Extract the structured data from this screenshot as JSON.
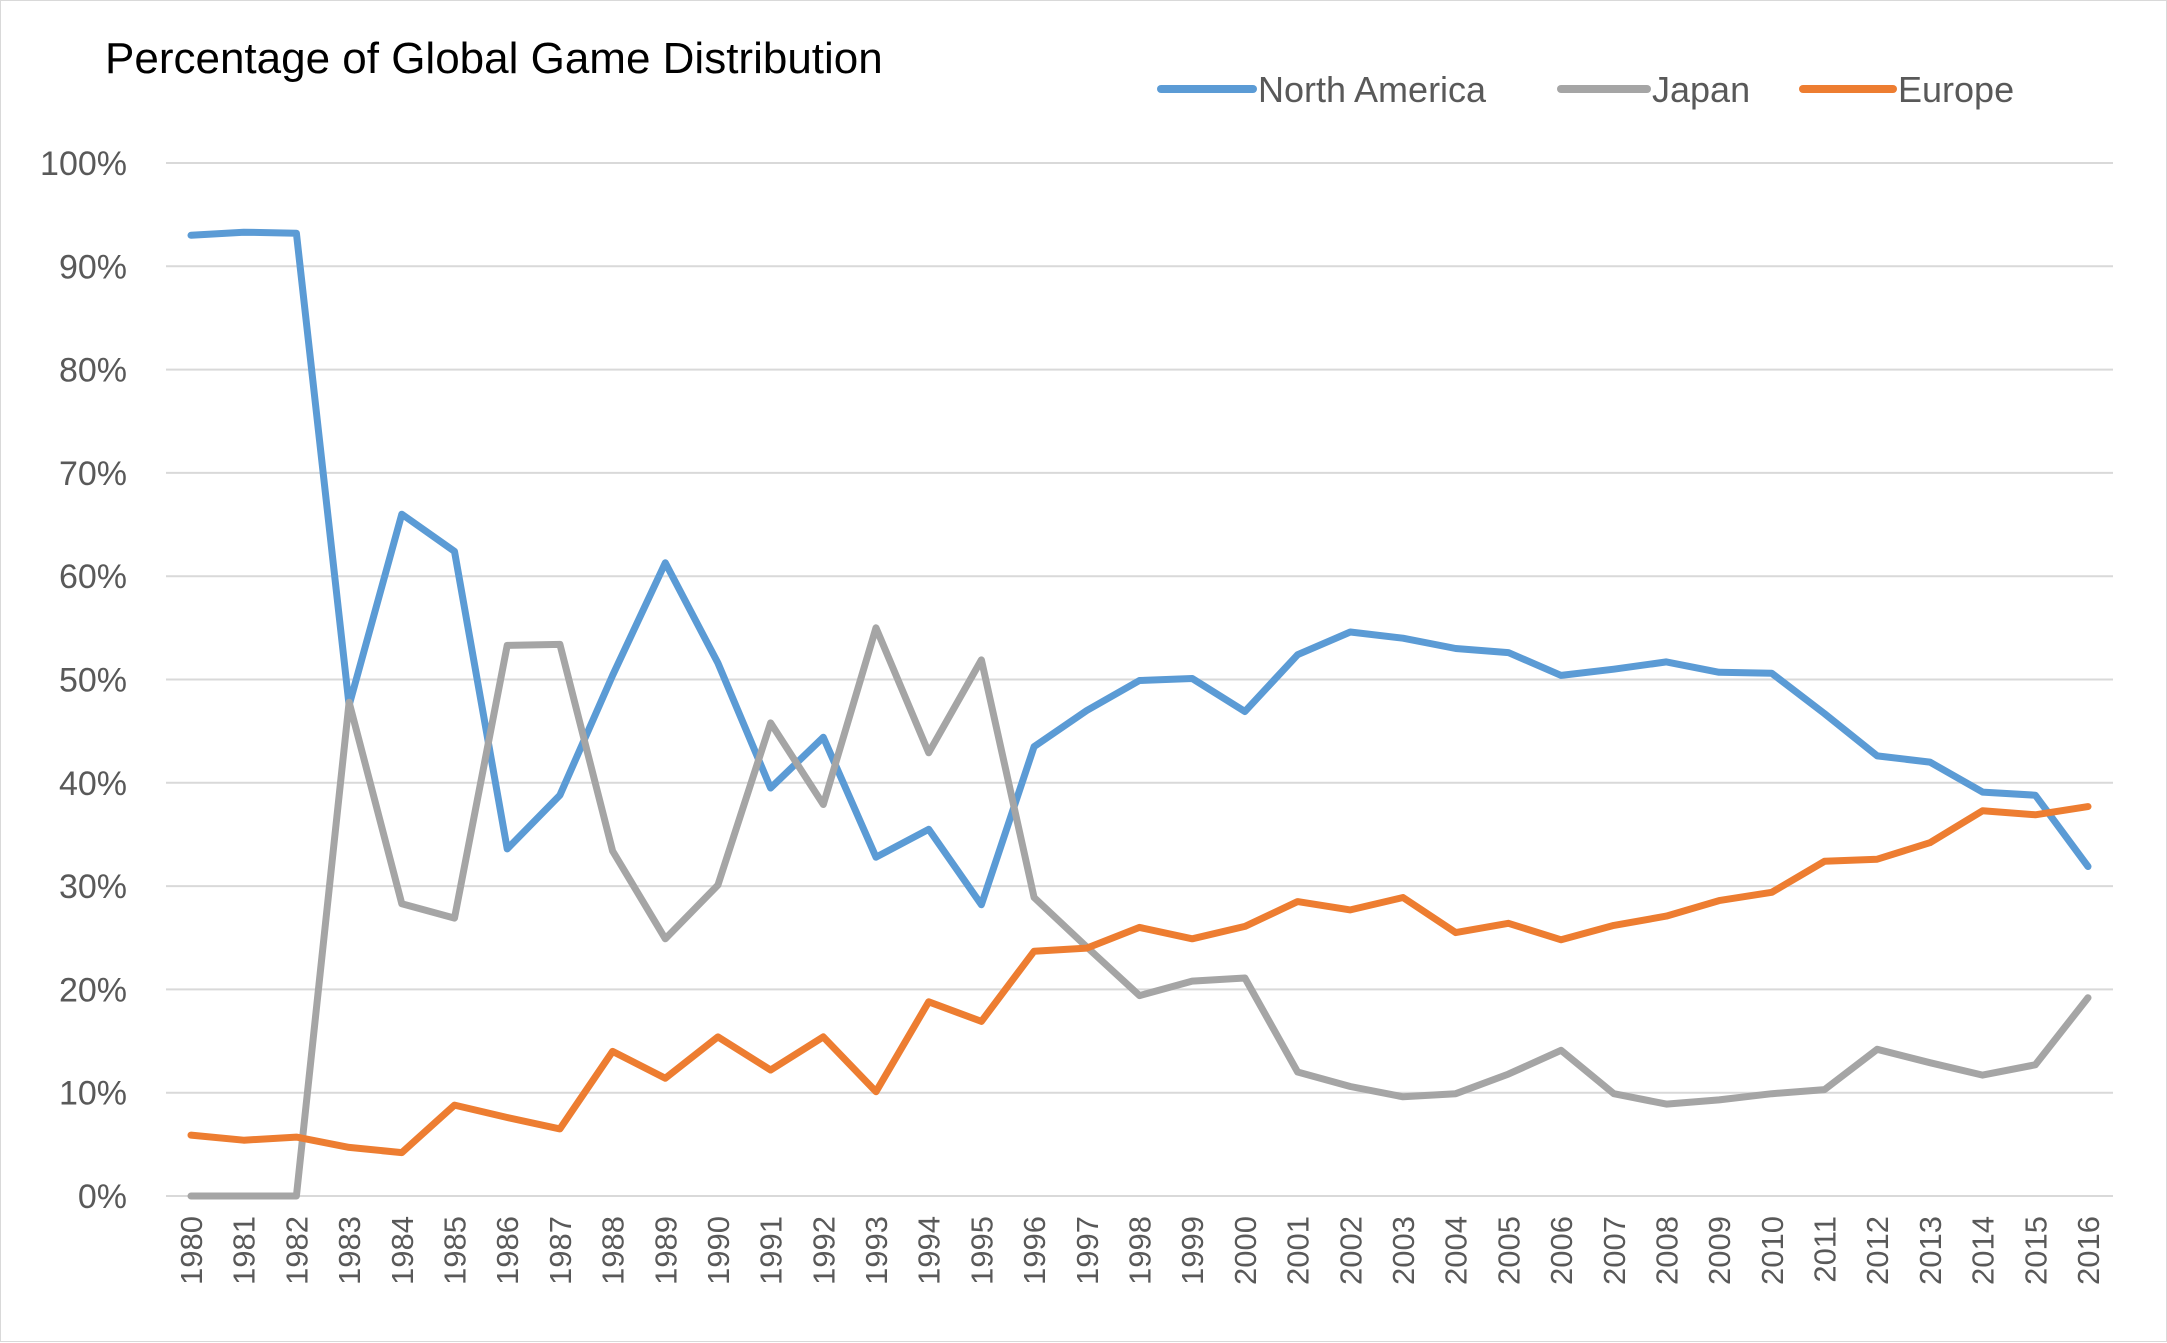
{
  "chart_data": {
    "type": "line",
    "title": "Percentage of Global Game Distribution",
    "xlabel": "",
    "ylabel": "",
    "ylim": [
      0,
      100
    ],
    "y_ticks": [
      "0%",
      "10%",
      "20%",
      "30%",
      "40%",
      "50%",
      "60%",
      "70%",
      "80%",
      "90%",
      "100%"
    ],
    "y_tick_values": [
      0,
      10,
      20,
      30,
      40,
      50,
      60,
      70,
      80,
      90,
      100
    ],
    "grid": true,
    "legend_position": "top-right",
    "categories": [
      "1980",
      "1981",
      "1982",
      "1983",
      "1984",
      "1985",
      "1986",
      "1987",
      "1988",
      "1989",
      "1990",
      "1991",
      "1992",
      "1993",
      "1994",
      "1995",
      "1996",
      "1997",
      "1998",
      "1999",
      "2000",
      "2001",
      "2002",
      "2003",
      "2004",
      "2005",
      "2006",
      "2007",
      "2008",
      "2009",
      "2010",
      "2011",
      "2012",
      "2013",
      "2014",
      "2015",
      "2016"
    ],
    "series": [
      {
        "name": "North America",
        "color": "#5b9bd5",
        "values": [
          93.0,
          93.3,
          93.2,
          47.5,
          66.0,
          62.4,
          33.6,
          38.8,
          50.4,
          61.3,
          51.6,
          39.5,
          44.4,
          32.8,
          35.5,
          28.2,
          43.5,
          47.0,
          49.9,
          50.1,
          46.9,
          52.4,
          54.6,
          54.0,
          53.0,
          52.6,
          50.4,
          51.0,
          51.7,
          50.7,
          50.6,
          46.7,
          42.6,
          42.0,
          39.1,
          38.8,
          31.9
        ]
      },
      {
        "name": "Japan",
        "color": "#a5a5a5",
        "values": [
          0.0,
          0.0,
          0.0,
          47.8,
          28.3,
          26.9,
          53.3,
          53.4,
          33.4,
          24.9,
          30.1,
          45.8,
          37.9,
          55.0,
          42.9,
          51.9,
          28.9,
          24.1,
          19.4,
          20.8,
          21.1,
          12.0,
          10.6,
          9.6,
          9.9,
          11.8,
          14.1,
          9.9,
          8.9,
          9.3,
          9.9,
          10.3,
          14.2,
          12.9,
          11.7,
          12.7,
          19.2
        ]
      },
      {
        "name": "Europe",
        "color": "#ed7d31",
        "values": [
          5.9,
          5.4,
          5.7,
          4.7,
          4.2,
          8.8,
          7.6,
          6.5,
          14.0,
          11.4,
          15.4,
          12.2,
          15.4,
          10.1,
          18.8,
          16.9,
          23.7,
          24.0,
          26.0,
          24.9,
          26.1,
          28.5,
          27.7,
          28.9,
          25.5,
          26.4,
          24.8,
          26.2,
          27.1,
          28.6,
          29.4,
          32.4,
          32.6,
          34.2,
          37.3,
          36.9,
          37.7
        ]
      }
    ]
  }
}
